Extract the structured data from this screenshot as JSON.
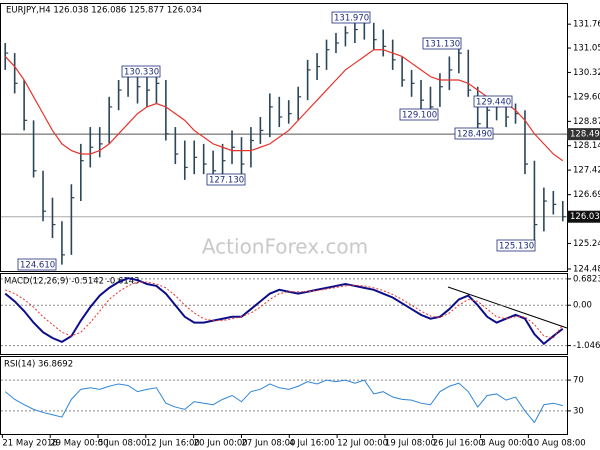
{
  "watermark": "ActionForex.com",
  "chart_data": [
    {
      "type": "ohlc",
      "title": "EURJPY,H4 126.038 126.086 125.877 126.034",
      "color": "#2a4658",
      "x": [
        0,
        1,
        2,
        3,
        4,
        5,
        6,
        7,
        8,
        9,
        10,
        11,
        12,
        13,
        14,
        15,
        16,
        17,
        18,
        19,
        20,
        21,
        22,
        23,
        24,
        25,
        26,
        27,
        28,
        29,
        30,
        31,
        32,
        33,
        34,
        35,
        36,
        37,
        38,
        39,
        40,
        41,
        42,
        43,
        44,
        45,
        46,
        47,
        48,
        49,
        50,
        51,
        52,
        53,
        54,
        55,
        56,
        57,
        58,
        59
      ],
      "high": [
        131.2,
        130.9,
        130.1,
        128.9,
        127.4,
        126.6,
        125.9,
        127.0,
        128.2,
        128.7,
        128.7,
        129.6,
        130.1,
        130.33,
        130.3,
        130.2,
        130.3,
        130.1,
        128.7,
        128.3,
        128.3,
        128.2,
        128.0,
        128.2,
        128.6,
        128.4,
        128.7,
        129.0,
        129.7,
        129.6,
        129.5,
        129.9,
        130.7,
        130.9,
        131.3,
        131.5,
        131.7,
        131.8,
        131.97,
        131.8,
        131.6,
        131.3,
        130.8,
        130.4,
        130.1,
        129.9,
        130.3,
        130.8,
        131.13,
        131.0,
        129.9,
        129.44,
        129.4,
        129.4,
        129.4,
        129.2,
        127.7,
        126.9,
        126.8,
        126.5
      ],
      "low": [
        130.4,
        129.7,
        128.6,
        127.2,
        125.9,
        125.4,
        124.61,
        124.9,
        126.5,
        127.5,
        127.8,
        128.2,
        129.2,
        129.6,
        129.4,
        129.3,
        129.4,
        128.3,
        127.6,
        127.13,
        127.3,
        127.3,
        127.2,
        127.3,
        127.6,
        127.3,
        127.5,
        128.2,
        128.4,
        128.7,
        128.8,
        128.9,
        129.5,
        130.1,
        130.4,
        130.9,
        131.1,
        131.2,
        131.3,
        131.0,
        130.8,
        130.4,
        129.9,
        129.6,
        129.1,
        129.2,
        129.3,
        129.8,
        130.3,
        129.6,
        128.49,
        128.6,
        128.9,
        128.7,
        128.8,
        127.3,
        125.13,
        125.6,
        126.1,
        125.9
      ],
      "close": [
        130.9,
        130.0,
        128.9,
        127.4,
        126.2,
        125.8,
        124.9,
        126.6,
        127.7,
        128.1,
        128.2,
        129.3,
        129.8,
        130.2,
        129.9,
        129.8,
        130.0,
        128.5,
        127.9,
        127.5,
        127.8,
        127.6,
        127.4,
        127.7,
        128.1,
        127.6,
        128.3,
        128.6,
        129.3,
        129.0,
        129.1,
        129.6,
        130.4,
        130.5,
        131.0,
        131.2,
        131.5,
        131.6,
        131.8,
        131.3,
        131.1,
        130.7,
        130.1,
        130.0,
        129.5,
        129.3,
        129.9,
        130.4,
        130.9,
        129.8,
        128.8,
        129.2,
        129.3,
        129.0,
        129.1,
        127.6,
        125.8,
        126.5,
        126.4,
        126.034
      ],
      "ma": {
        "color": "#e8332b",
        "values": [
          130.8,
          130.5,
          130.1,
          129.6,
          129.1,
          128.6,
          128.2,
          128.0,
          127.9,
          127.9,
          128.0,
          128.2,
          128.5,
          128.8,
          129.1,
          129.3,
          129.4,
          129.3,
          129.1,
          128.9,
          128.6,
          128.4,
          128.2,
          128.1,
          128.0,
          128.0,
          128.0,
          128.1,
          128.2,
          128.4,
          128.6,
          128.9,
          129.2,
          129.5,
          129.8,
          130.1,
          130.4,
          130.6,
          130.8,
          131.0,
          131.0,
          130.9,
          130.8,
          130.6,
          130.4,
          130.2,
          130.1,
          130.1,
          130.1,
          130.0,
          129.8,
          129.6,
          129.5,
          129.4,
          129.2,
          128.9,
          128.5,
          128.2,
          127.9,
          127.7
        ]
      },
      "annotations": [
        "131.970",
        "131.130",
        "130.330",
        "129.100",
        "129.440",
        "128.490",
        "127.130",
        "125.130",
        "124.610"
      ],
      "hline": {
        "value": 128.49,
        "label": "128.490"
      },
      "last_price": {
        "value": 126.034,
        "label": "126.034"
      },
      "xlim": [
        -0.5,
        59.5
      ],
      "xticks": [
        {
          "value": -0.3,
          "label": "21 May 2018"
        },
        {
          "value": 4.76,
          "label": "29 May 00:00"
        },
        {
          "value": 9.82,
          "label": "5 Jun 08:00"
        },
        {
          "value": 14.88,
          "label": "12 Jun 16:00"
        },
        {
          "value": 19.94,
          "label": "20 Jun 00:00"
        },
        {
          "value": 25,
          "label": "27 Jun 08:00"
        },
        {
          "value": 30.06,
          "label": "4 Jul 16:00"
        },
        {
          "value": 35.12,
          "label": "12 Jul 00:00"
        },
        {
          "value": 40.18,
          "label": "19 Jul 08:00"
        },
        {
          "value": 45.24,
          "label": "26 Jul 16:00"
        },
        {
          "value": 50.3,
          "label": "3 Aug 00:00"
        },
        {
          "value": 55.36,
          "label": "10 Aug 08:00"
        }
      ],
      "ylim": [
        124.42,
        132.36
      ],
      "yticks": [
        {
          "value": 131.76,
          "label": "131.760"
        },
        {
          "value": 131.05,
          "label": "131.050"
        },
        {
          "value": 130.325,
          "label": "130.325"
        },
        {
          "value": 129.6,
          "label": "129.600"
        },
        {
          "value": 128.87,
          "label": "128.870"
        },
        {
          "value": 128.145,
          "label": "128.145"
        },
        {
          "value": 127.42,
          "label": "127.420"
        },
        {
          "value": 126.69,
          "label": "126.690"
        },
        {
          "value": 125.24,
          "label": "125.240"
        },
        {
          "value": 124.48,
          "label": "124.480"
        }
      ],
      "grid": false
    },
    {
      "type": "line",
      "title": "MACD(12,26,9) -0.5142 -0.6143",
      "series": [
        {
          "color": "#0d0d8a",
          "dashed": false,
          "values": [
            0.3,
            0.1,
            -0.15,
            -0.45,
            -0.7,
            -0.85,
            -0.95,
            -0.8,
            -0.4,
            -0.05,
            0.25,
            0.45,
            0.6,
            0.7,
            0.65,
            0.55,
            0.5,
            0.3,
            0.0,
            -0.3,
            -0.45,
            -0.45,
            -0.4,
            -0.35,
            -0.3,
            -0.3,
            -0.1,
            0.1,
            0.3,
            0.4,
            0.35,
            0.3,
            0.35,
            0.4,
            0.45,
            0.5,
            0.55,
            0.5,
            0.45,
            0.4,
            0.3,
            0.2,
            0.05,
            -0.1,
            -0.25,
            -0.35,
            -0.3,
            -0.1,
            0.15,
            0.25,
            0.0,
            -0.3,
            -0.45,
            -0.35,
            -0.25,
            -0.35,
            -0.75,
            -1.0,
            -0.8,
            -0.61
          ]
        },
        {
          "color": "#e8332b",
          "dashed": true,
          "values": [
            0.4,
            0.3,
            0.15,
            -0.05,
            -0.3,
            -0.5,
            -0.7,
            -0.8,
            -0.7,
            -0.45,
            -0.15,
            0.15,
            0.35,
            0.5,
            0.6,
            0.6,
            0.55,
            0.45,
            0.25,
            0.0,
            -0.2,
            -0.35,
            -0.4,
            -0.4,
            -0.35,
            -0.3,
            -0.2,
            -0.05,
            0.15,
            0.3,
            0.35,
            0.35,
            0.35,
            0.38,
            0.42,
            0.46,
            0.5,
            0.52,
            0.5,
            0.45,
            0.38,
            0.28,
            0.15,
            0.0,
            -0.15,
            -0.28,
            -0.32,
            -0.2,
            0.0,
            0.15,
            0.1,
            -0.1,
            -0.3,
            -0.35,
            -0.3,
            -0.3,
            -0.5,
            -0.8,
            -0.85,
            -0.51
          ]
        }
      ],
      "ylim": [
        -1.264,
        0.809
      ],
      "yticks": [
        0.6823,
        {
          "value": 0,
          "label": "0.00"
        },
        -1.0461
      ],
      "grid": true
    },
    {
      "type": "line",
      "title": "RSI(14) 36.8692",
      "series": [
        {
          "color": "#2f86d6",
          "dashed": false,
          "values": [
            55,
            45,
            38,
            32,
            28,
            25,
            22,
            45,
            58,
            60,
            58,
            62,
            65,
            63,
            55,
            58,
            60,
            40,
            35,
            32,
            42,
            40,
            38,
            45,
            50,
            42,
            55,
            58,
            65,
            60,
            58,
            62,
            68,
            65,
            70,
            68,
            70,
            66,
            70,
            52,
            55,
            48,
            45,
            44,
            40,
            38,
            55,
            62,
            66,
            55,
            35,
            50,
            52,
            44,
            48,
            30,
            15,
            38,
            40,
            36.87
          ]
        }
      ],
      "ylim": [
        0,
        100
      ],
      "yticks": [
        70,
        30
      ],
      "grid": true
    }
  ]
}
